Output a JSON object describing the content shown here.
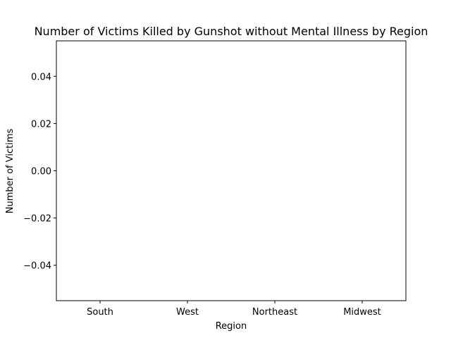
{
  "chart_data": {
    "type": "bar",
    "title": "Number of Victims Killed by Gunshot without Mental Illness by Region",
    "xlabel": "Region",
    "ylabel": "Number of Victims",
    "categories": [
      "South",
      "West",
      "Northeast",
      "Midwest"
    ],
    "values": [
      0,
      0,
      0,
      0
    ],
    "ylim": [
      -0.055,
      0.055
    ],
    "yticks": [
      0.04,
      0.02,
      0.0,
      -0.02,
      -0.04
    ],
    "ytick_labels": [
      "0.04",
      "0.02",
      "0.00",
      "−0.02",
      "−0.04"
    ],
    "grid": false,
    "colors": {
      "bar": "#1f77b4",
      "axes": "#000000",
      "background": "#ffffff"
    }
  }
}
